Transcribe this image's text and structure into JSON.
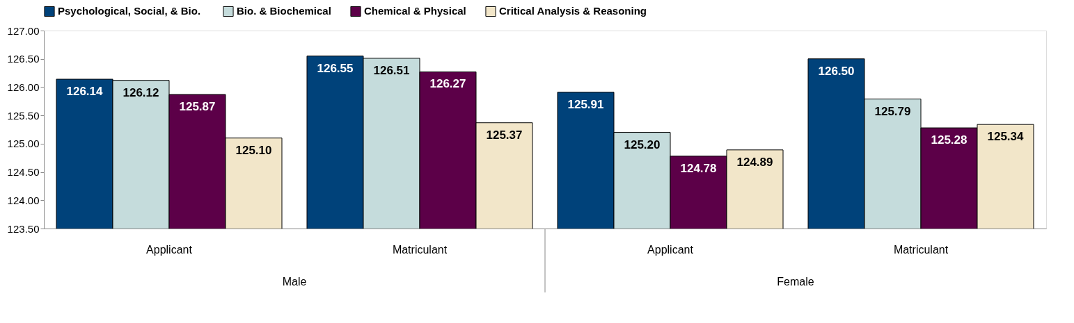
{
  "chart_data": {
    "type": "bar",
    "categories": [
      "Applicant",
      "Matriculant",
      "Applicant",
      "Matriculant"
    ],
    "series": [
      {
        "name": "Psychological, Social, &  Bio.",
        "color": "#00427a",
        "values": [
          126.14,
          126.55,
          125.91,
          126.5
        ],
        "value_labels": [
          "126.14",
          "126.55",
          "125.91",
          "126.50"
        ]
      },
      {
        "name": "Bio. & Biochemical",
        "color": "#c5dcdc",
        "values": [
          126.12,
          126.51,
          125.2,
          125.79
        ],
        "value_labels": [
          "126.12",
          "126.51",
          "125.20",
          "125.79"
        ]
      },
      {
        "name": "Chemical & Physical",
        "color": "#5c0048",
        "values": [
          125.87,
          126.27,
          124.78,
          125.28
        ],
        "value_labels": [
          "125.87",
          "126.27",
          "124.78",
          "125.28"
        ]
      },
      {
        "name": "Critical Analysis & Reasoning",
        "color": "#f2e6c9",
        "values": [
          125.1,
          125.37,
          124.89,
          125.34
        ],
        "value_labels": [
          "125.10",
          "125.37",
          "124.89",
          "125.34"
        ]
      }
    ],
    "ylim": [
      123.5,
      127
    ],
    "yticks": [
      {
        "value": 123.5,
        "label": "123.50"
      },
      {
        "value": 124,
        "label": "124.00"
      },
      {
        "value": 124.5,
        "label": "124.50"
      },
      {
        "value": 125,
        "label": "125.00"
      },
      {
        "value": 125.5,
        "label": "125.50"
      },
      {
        "value": 126,
        "label": "126.00"
      },
      {
        "value": 126.5,
        "label": "126.50"
      },
      {
        "value": 127,
        "label": "127.00"
      }
    ],
    "annotations": [
      "Male",
      "Female"
    ],
    "legend": "top",
    "grid": false
  }
}
